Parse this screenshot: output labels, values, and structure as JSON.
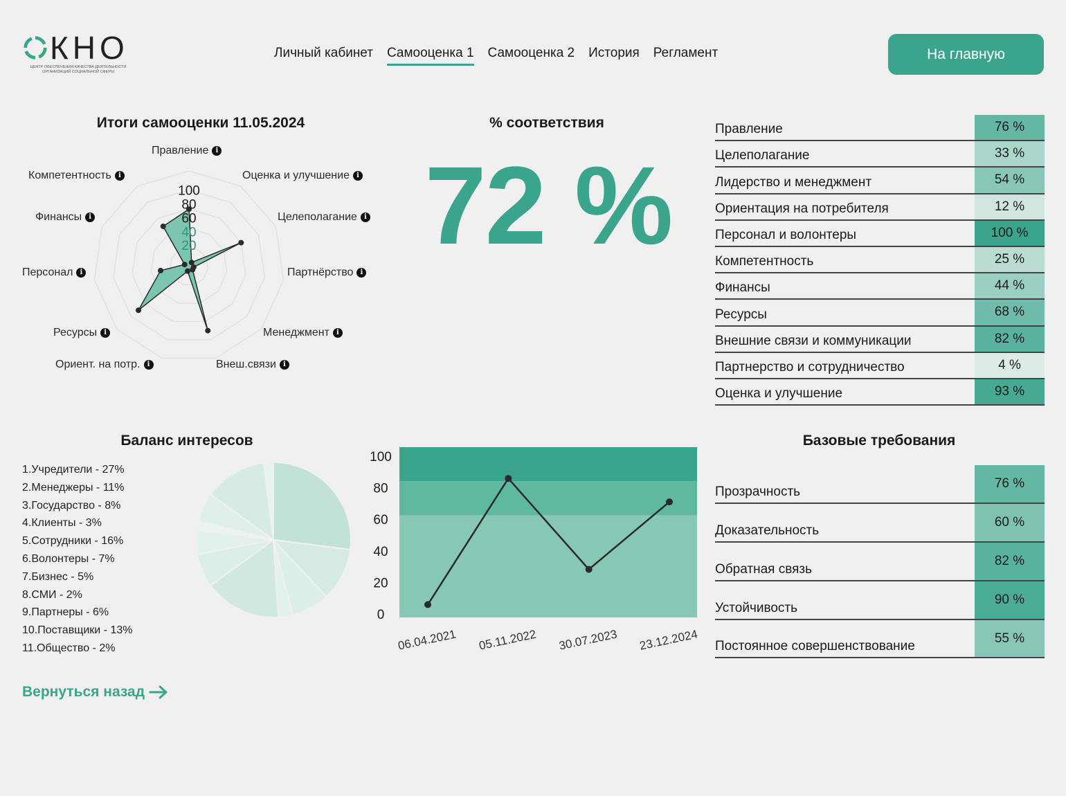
{
  "header": {
    "logo_text": "ОКНО",
    "logo_subtitle": "ЦЕНТР ОБЕСПЕЧЕНИЯ КАЧЕСТВА ДЕЯТЕЛЬНОСТИ ОРГАНИЗАЦИЙ СОЦИАЛЬНОЙ СФЕРЫ",
    "nav": [
      {
        "label": "Личный кабинет",
        "active": false
      },
      {
        "label": "Самооценка 1",
        "active": true
      },
      {
        "label": "Самооценка 2",
        "active": false
      },
      {
        "label": "История",
        "active": false
      },
      {
        "label": "Регламент",
        "active": false
      }
    ],
    "home_button": "На главную"
  },
  "radar": {
    "title": "Итоги самооценки 11.05.2024",
    "ticks": [
      "100",
      "80",
      "60",
      "40",
      "20"
    ],
    "axes": [
      {
        "label": "Правление",
        "value": 60
      },
      {
        "label": "Оценка и улучшение",
        "value": 5
      },
      {
        "label": "Целеполагание",
        "value": 60
      },
      {
        "label": "Партнёрство",
        "value": 5
      },
      {
        "label": "Менеджмент",
        "value": 5
      },
      {
        "label": "Внеш.связи",
        "value": 70
      },
      {
        "label": "Ориент. на потр.",
        "value": 5
      },
      {
        "label": "Ресурсы",
        "value": 70
      },
      {
        "label": "Персонал",
        "value": 30
      },
      {
        "label": "Финансы",
        "value": 5
      },
      {
        "label": "Компетентность",
        "value": 50
      }
    ],
    "info_glyph": "i"
  },
  "compliance": {
    "title": "% соответствия",
    "value": "72 %"
  },
  "scores": [
    {
      "label": "Правление",
      "value": "76 %",
      "pct": 76
    },
    {
      "label": "Целеполагание",
      "value": "33 %",
      "pct": 33
    },
    {
      "label": "Лидерство и менеджмент",
      "value": "54 %",
      "pct": 54
    },
    {
      "label": "Ориентация на потребителя",
      "value": "12 %",
      "pct": 12
    },
    {
      "label": "Персонал и волонтеры",
      "value": "100 %",
      "pct": 100
    },
    {
      "label": "Компетентность",
      "value": "25 %",
      "pct": 25
    },
    {
      "label": "Финансы",
      "value": "44 %",
      "pct": 44
    },
    {
      "label": "Ресурсы",
      "value": "68 %",
      "pct": 68
    },
    {
      "label": "Внешние связи и коммуникации",
      "value": "82 %",
      "pct": 82
    },
    {
      "label": "Партнерство и сотрудничество",
      "value": "4 %",
      "pct": 4
    },
    {
      "label": "Оценка и улучшение",
      "value": "93 %",
      "pct": 93
    }
  ],
  "balance": {
    "title": "Баланс интересов",
    "items": [
      {
        "label": "1.Учредители - 27%",
        "pct": 27
      },
      {
        "label": "2.Менеджеры - 11%",
        "pct": 11
      },
      {
        "label": "3.Государство - 8%",
        "pct": 8
      },
      {
        "label": "4.Клиенты - 3%",
        "pct": 3
      },
      {
        "label": "5.Сотрудники - 16%",
        "pct": 16
      },
      {
        "label": "6.Волонтеры - 7%",
        "pct": 7
      },
      {
        "label": "7.Бизнес - 5%",
        "pct": 5
      },
      {
        "label": "8.СМИ - 2%",
        "pct": 2
      },
      {
        "label": "9.Партнеры - 6%",
        "pct": 6
      },
      {
        "label": "10.Поставщики - 13%",
        "pct": 13
      },
      {
        "label": "11.Общество - 2%",
        "pct": 2
      }
    ]
  },
  "chart_data": {
    "type": "line",
    "categories": [
      "06.04.2021",
      "05.11.2022",
      "30.07.2023",
      "23.12.2024"
    ],
    "values": [
      4,
      90,
      28,
      74
    ],
    "ylim": [
      0,
      110
    ],
    "yticks": [
      "100",
      "80",
      "60",
      "40",
      "20",
      "0"
    ],
    "bands": [
      {
        "from": 0,
        "to": 66,
        "color": "#86c7b5"
      },
      {
        "from": 66,
        "to": 88,
        "color": "#5fb9a1"
      },
      {
        "from": 88,
        "to": 110,
        "color": "#3aa58c"
      }
    ]
  },
  "base_requirements": {
    "title": "Базовые требования",
    "items": [
      {
        "label": "Прозрачность",
        "value": "76 %",
        "pct": 76
      },
      {
        "label": "Доказательность",
        "value": "60 %",
        "pct": 60
      },
      {
        "label": "Обратная связь",
        "value": "82 %",
        "pct": 82
      },
      {
        "label": "Устойчивость",
        "value": "90 %",
        "pct": 90
      },
      {
        "label": "Постоянное совершенствование",
        "value": "55 %",
        "pct": 55
      }
    ]
  },
  "back_link": "Вернуться назад",
  "colors": {
    "accent": "#3aa58c",
    "background": "#f0f0f0"
  }
}
